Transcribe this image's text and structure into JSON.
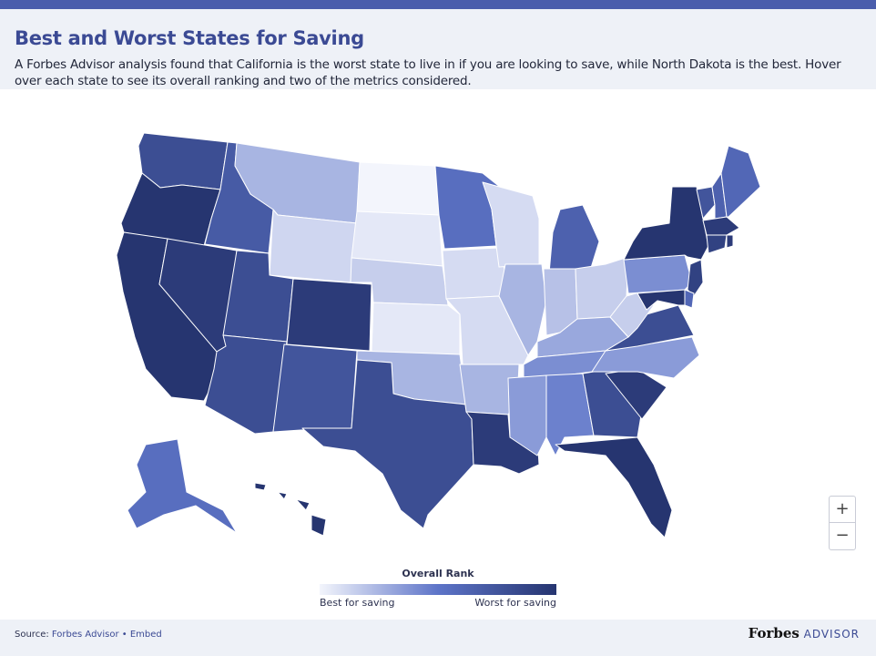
{
  "header": {
    "title": "Best and Worst States for Saving",
    "subtitle": "A Forbes Advisor analysis found that California is the worst state to live in if you are looking to save, while North Dakota is the best. Hover over each state to see its overall ranking and two of the metrics considered."
  },
  "colors": {
    "accent": "#4a5dac",
    "best": "#f3f5fc",
    "mid": "#5d74c8",
    "worst": "#263570"
  },
  "map": {
    "states": [
      {
        "code": "WA",
        "level": 0.8
      },
      {
        "code": "OR",
        "level": 1.0
      },
      {
        "code": "CA",
        "level": 1.0
      },
      {
        "code": "NV",
        "level": 0.95
      },
      {
        "code": "ID",
        "level": 0.7
      },
      {
        "code": "MT",
        "level": 0.25
      },
      {
        "code": "WY",
        "level": 0.12
      },
      {
        "code": "UT",
        "level": 0.8
      },
      {
        "code": "AZ",
        "level": 0.8
      },
      {
        "code": "CO",
        "level": 0.95
      },
      {
        "code": "NM",
        "level": 0.75
      },
      {
        "code": "ND",
        "level": 0.0
      },
      {
        "code": "SD",
        "level": 0.05
      },
      {
        "code": "NE",
        "level": 0.15
      },
      {
        "code": "KS",
        "level": 0.05
      },
      {
        "code": "OK",
        "level": 0.25
      },
      {
        "code": "TX",
        "level": 0.8
      },
      {
        "code": "MN",
        "level": 0.55
      },
      {
        "code": "IA",
        "level": 0.1
      },
      {
        "code": "MO",
        "level": 0.1
      },
      {
        "code": "AR",
        "level": 0.25
      },
      {
        "code": "LA",
        "level": 0.95
      },
      {
        "code": "WI",
        "level": 0.1
      },
      {
        "code": "IL",
        "level": 0.25
      },
      {
        "code": "MI",
        "level": 0.65
      },
      {
        "code": "IN",
        "level": 0.2
      },
      {
        "code": "OH",
        "level": 0.15
      },
      {
        "code": "KY",
        "level": 0.3
      },
      {
        "code": "TN",
        "level": 0.4
      },
      {
        "code": "MS",
        "level": 0.35
      },
      {
        "code": "AL",
        "level": 0.45
      },
      {
        "code": "GA",
        "level": 0.8
      },
      {
        "code": "FL",
        "level": 1.0
      },
      {
        "code": "SC",
        "level": 0.95
      },
      {
        "code": "NC",
        "level": 0.35
      },
      {
        "code": "VA",
        "level": 0.8
      },
      {
        "code": "WV",
        "level": 0.15
      },
      {
        "code": "PA",
        "level": 0.4
      },
      {
        "code": "NY",
        "level": 1.0
      },
      {
        "code": "VT",
        "level": 0.75
      },
      {
        "code": "NH",
        "level": 0.65
      },
      {
        "code": "ME",
        "level": 0.6
      },
      {
        "code": "MA",
        "level": 0.95
      },
      {
        "code": "CT",
        "level": 0.9
      },
      {
        "code": "RI",
        "level": 0.95
      },
      {
        "code": "NJ",
        "level": 0.9
      },
      {
        "code": "DE",
        "level": 0.6
      },
      {
        "code": "MD",
        "level": 1.0
      },
      {
        "code": "AK",
        "level": 0.55
      },
      {
        "code": "HI",
        "level": 1.0
      }
    ]
  },
  "zoom": {
    "in": "+",
    "out": "−"
  },
  "legend": {
    "title": "Overall Rank",
    "low_label": "Best for saving",
    "high_label": "Worst for saving"
  },
  "footer": {
    "source_prefix": "Source:",
    "source_link": "Forbes Advisor",
    "separator": "•",
    "embed": "Embed",
    "brand_main": "Forbes",
    "brand_sub": "ADVISOR"
  }
}
